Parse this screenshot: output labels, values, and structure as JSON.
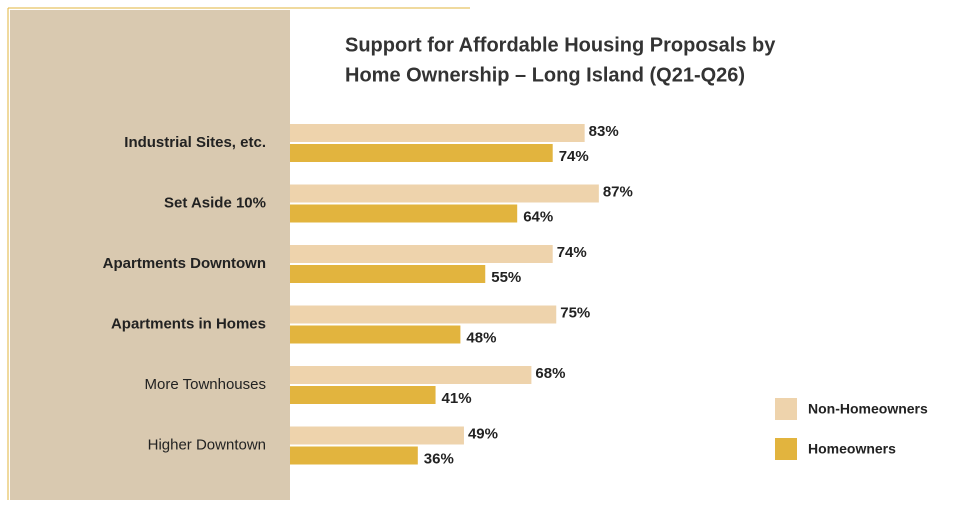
{
  "chart_data": {
    "type": "bar",
    "orientation": "horizontal",
    "title": [
      "Support for Affordable Housing Proposals by",
      "Home Ownership – Long Island (Q21-Q26)"
    ],
    "categories": [
      "Industrial Sites, etc.",
      "Set Aside 10%",
      "Apartments Downtown",
      "Apartments in Homes",
      "More Townhouses",
      "Higher Downtown"
    ],
    "series": [
      {
        "name": "Non-Homeowners",
        "color": "#eed3ac",
        "values": [
          83,
          87,
          74,
          75,
          68,
          49
        ],
        "value_labels": [
          "83%",
          "87%",
          "74%",
          "75%",
          "68%",
          "49%"
        ]
      },
      {
        "name": "Homeowners",
        "color": "#e2b43e",
        "values": [
          74,
          64,
          55,
          48,
          41,
          36
        ],
        "value_labels": [
          "74%",
          "64%",
          "55%",
          "48%",
          "41%",
          "36%"
        ]
      }
    ],
    "xlim": [
      0,
      100
    ],
    "legend": "lower right"
  }
}
